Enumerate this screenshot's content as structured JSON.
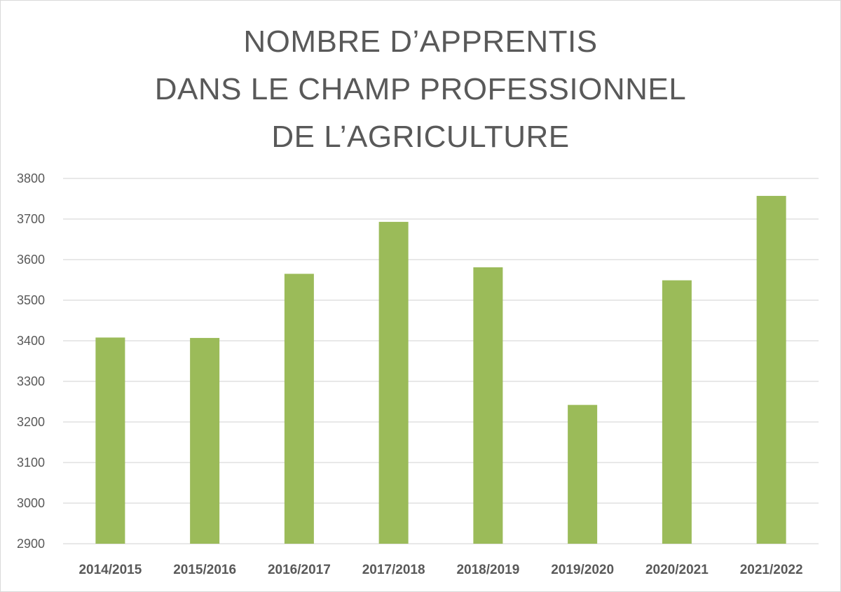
{
  "chart_data": {
    "type": "bar",
    "title_lines": [
      "NOMBRE D’APPRENTIS",
      "DANS LE CHAMP PROFESSIONNEL",
      "DE L’AGRICULTURE"
    ],
    "categories": [
      "2014/2015",
      "2015/2016",
      "2016/2017",
      "2017/2018",
      "2018/2019",
      "2019/2020",
      "2020/2021",
      "2021/2022"
    ],
    "values": [
      3408,
      3407,
      3565,
      3693,
      3581,
      3242,
      3549,
      3757
    ],
    "xlabel": "",
    "ylabel": "",
    "ylim": [
      2900,
      3800
    ],
    "yticks": [
      2900,
      3000,
      3100,
      3200,
      3300,
      3400,
      3500,
      3600,
      3700,
      3800
    ],
    "grid": true,
    "legend": "none",
    "bar_color": "#9bbb59",
    "grid_color": "#d9d9d9",
    "text_color": "#595959"
  }
}
